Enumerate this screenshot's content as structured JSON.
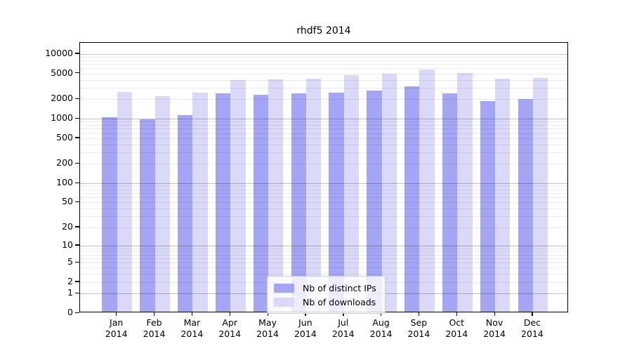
{
  "title": "rhdf5 2014",
  "colors": {
    "bar_distinct_ips": "#a5a5f5",
    "bar_downloads": "#dadaf8",
    "grid_major": "#c4c4c4",
    "grid_minor": "#eaeaea",
    "spine": "#000000",
    "legend_border": "#cccccc"
  },
  "chart_data": {
    "type": "bar",
    "title": "rhdf5 2014",
    "scale": "log1p",
    "categories": [
      "Jan",
      "Feb",
      "Mar",
      "Apr",
      "May",
      "Jun",
      "Jul",
      "Aug",
      "Sep",
      "Oct",
      "Nov",
      "Dec"
    ],
    "category_year": "2014",
    "series": [
      {
        "name": "Nb of distinct IPs",
        "color": "#a5a5f5",
        "values": [
          1000,
          940,
          1070,
          2370,
          2210,
          2340,
          2430,
          2570,
          2970,
          2360,
          1760,
          1910
        ]
      },
      {
        "name": "Nb of downloads",
        "color": "#dadaf8",
        "values": [
          2440,
          2120,
          2400,
          3740,
          3840,
          3960,
          4430,
          4690,
          5470,
          4810,
          3960,
          4030
        ]
      }
    ],
    "y_ticks": [
      10000,
      5000,
      2000,
      1000,
      500,
      200,
      100,
      50,
      20,
      10,
      5,
      2,
      1,
      0
    ],
    "y_major_gridlines": [
      1,
      10,
      100,
      1000,
      10000
    ],
    "ylim": [
      0,
      14860
    ],
    "grid": true,
    "legend_position": "lower center",
    "xlabel": "",
    "ylabel": ""
  }
}
